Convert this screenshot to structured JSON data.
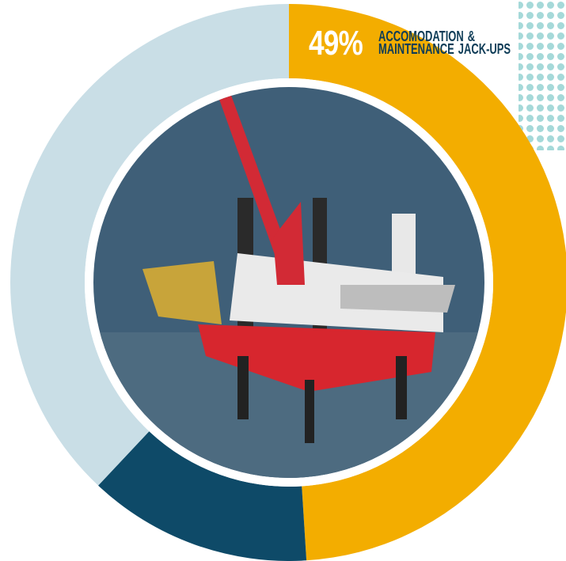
{
  "chart_data": {
    "type": "pie",
    "categories": [
      "ACCOMODATION & MAINTENANCE JACK-UPS",
      null,
      null
    ],
    "values": [
      49,
      13,
      38
    ],
    "value_labels": [
      "49%",
      null,
      null
    ],
    "colors": [
      "#f3ad00",
      "#0e4a68",
      "#c9dee6"
    ]
  }
}
